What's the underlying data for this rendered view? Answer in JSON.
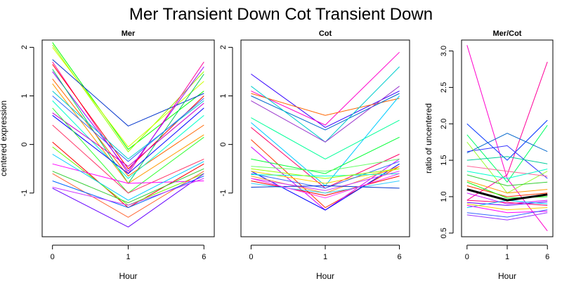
{
  "chart_data": {
    "title": "Mer Transient Down Cot Transient Down",
    "panels": [
      {
        "type": "line",
        "title": "Mer",
        "xlabel": "Hour",
        "ylabel": "centered expression",
        "x": [
          "0",
          "1",
          "6"
        ],
        "ylim": [
          -1.9,
          2.15
        ],
        "yticks": [
          -1,
          0,
          1,
          2
        ],
        "series": [
          {
            "color": "#00ff00",
            "values": [
              2.1,
              -0.1,
              1.1
            ]
          },
          {
            "color": "#99ff00",
            "values": [
              2.05,
              -0.15,
              1.5
            ]
          },
          {
            "color": "#ccff00",
            "values": [
              2.0,
              -0.05,
              1.3
            ]
          },
          {
            "color": "#0033cc",
            "values": [
              1.75,
              0.38,
              1.05
            ]
          },
          {
            "color": "#ff0099",
            "values": [
              1.7,
              -0.6,
              1.7
            ]
          },
          {
            "color": "#ff0000",
            "values": [
              1.65,
              -0.5,
              1.0
            ]
          },
          {
            "color": "#9900ff",
            "values": [
              1.5,
              -0.55,
              1.6
            ]
          },
          {
            "color": "#00cc66",
            "values": [
              1.55,
              -0.8,
              1.45
            ]
          },
          {
            "color": "#ff6600",
            "values": [
              1.35,
              -0.65,
              0.4
            ]
          },
          {
            "color": "#ff9900",
            "values": [
              1.25,
              -0.8,
              0.2
            ]
          },
          {
            "color": "#00cccc",
            "values": [
              1.1,
              -0.3,
              0.9
            ]
          },
          {
            "color": "#3366ff",
            "values": [
              1.0,
              -0.35,
              0.95
            ]
          },
          {
            "color": "#00ffcc",
            "values": [
              0.9,
              -0.7,
              0.6
            ]
          },
          {
            "color": "#cc00cc",
            "values": [
              0.65,
              -0.45,
              0.85
            ]
          },
          {
            "color": "#0000ff",
            "values": [
              0.6,
              -0.6,
              0.75
            ]
          },
          {
            "color": "#33ff33",
            "values": [
              0.75,
              -1.0,
              0.15
            ]
          },
          {
            "color": "#ff3366",
            "values": [
              0.4,
              -1.0,
              -0.3
            ]
          },
          {
            "color": "#ff0000",
            "values": [
              0.05,
              -1.3,
              -0.4
            ]
          },
          {
            "color": "#66ff00",
            "values": [
              -0.05,
              -1.25,
              -0.6
            ]
          },
          {
            "color": "#ff00ff",
            "values": [
              -0.4,
              -0.8,
              -0.75
            ]
          },
          {
            "color": "#00ccff",
            "values": [
              -0.2,
              -1.15,
              -0.35
            ]
          },
          {
            "color": "#33cc33",
            "values": [
              -0.55,
              -1.2,
              -0.5
            ]
          },
          {
            "color": "#ff6633",
            "values": [
              -0.6,
              -1.5,
              -0.55
            ]
          },
          {
            "color": "#0066ff",
            "values": [
              -0.75,
              -1.3,
              -0.65
            ]
          },
          {
            "color": "#6600ff",
            "values": [
              -0.9,
              -1.7,
              -0.6
            ]
          },
          {
            "color": "#cc33ff",
            "values": [
              -0.88,
              -1.25,
              -0.7
            ]
          }
        ]
      },
      {
        "type": "line",
        "title": "Cot",
        "xlabel": "Hour",
        "ylabel": "",
        "x": [
          "0",
          "1",
          "6"
        ],
        "ylim": [
          -1.9,
          2.15
        ],
        "yticks": [
          -1,
          0,
          1,
          2
        ],
        "series": [
          {
            "color": "#3300ff",
            "values": [
              1.45,
              0.35,
              1.1
            ]
          },
          {
            "color": "#ff00cc",
            "values": [
              1.1,
              0.4,
              1.9
            ]
          },
          {
            "color": "#ff6600",
            "values": [
              1.05,
              0.6,
              0.95
            ]
          },
          {
            "color": "#0066cc",
            "values": [
              1.0,
              0.3,
              1.05
            ]
          },
          {
            "color": "#00cccc",
            "values": [
              1.2,
              0.05,
              1.6
            ]
          },
          {
            "color": "#9933cc",
            "values": [
              0.9,
              0.05,
              1.2
            ]
          },
          {
            "color": "#00ff99",
            "values": [
              0.55,
              -0.3,
              0.5
            ]
          },
          {
            "color": "#00ccff",
            "values": [
              0.45,
              -0.85,
              1.0
            ]
          },
          {
            "color": "#ff0066",
            "values": [
              0.35,
              -0.9,
              -0.2
            ]
          },
          {
            "color": "#ff3300",
            "values": [
              0.1,
              -1.3,
              -0.45
            ]
          },
          {
            "color": "#cc00ff",
            "values": [
              -0.05,
              -1.35,
              -0.3
            ]
          },
          {
            "color": "#00ff33",
            "values": [
              -0.3,
              -0.6,
              0.15
            ]
          },
          {
            "color": "#0000ff",
            "values": [
              -0.55,
              -1.35,
              -0.4
            ]
          },
          {
            "color": "#66ff66",
            "values": [
              -0.45,
              -0.55,
              -0.3
            ]
          },
          {
            "color": "#ffcc00",
            "values": [
              -0.55,
              -0.8,
              -0.5
            ]
          },
          {
            "color": "#ff9933",
            "values": [
              -0.65,
              -1.0,
              -0.45
            ]
          },
          {
            "color": "#3366ff",
            "values": [
              -0.6,
              -0.9,
              -0.35
            ]
          },
          {
            "color": "#00ffcc",
            "values": [
              -0.62,
              -0.65,
              -0.6
            ]
          },
          {
            "color": "#cc33ff",
            "values": [
              -0.7,
              -0.95,
              -0.55
            ]
          },
          {
            "color": "#ff0000",
            "values": [
              -0.75,
              -1.05,
              -0.65
            ]
          },
          {
            "color": "#33ccff",
            "values": [
              -0.8,
              -1.0,
              -0.75
            ]
          },
          {
            "color": "#0033cc",
            "values": [
              -0.88,
              -0.85,
              -0.9
            ]
          },
          {
            "color": "#99ff00",
            "values": [
              -0.5,
              -0.7,
              -0.5
            ]
          },
          {
            "color": "#ff33ff",
            "values": [
              -0.7,
              -1.1,
              -0.6
            ]
          }
        ]
      },
      {
        "type": "line",
        "title": "Mer/Cot",
        "xlabel": "Hour",
        "ylabel": "ratio of uncentered",
        "x": [
          "0",
          "1",
          "6"
        ],
        "ylim": [
          0.45,
          3.15
        ],
        "yticks": [
          0.5,
          1.0,
          1.5,
          2.0,
          2.5,
          3.0
        ],
        "yticklabels": [
          "0.5",
          "1.0",
          "1.5",
          "2.0",
          "2.5",
          "3.0"
        ],
        "series": [
          {
            "color": "#ff00cc",
            "values": [
              3.08,
              1.25,
              0.53
            ]
          },
          {
            "color": "#ff0099",
            "values": [
              0.95,
              1.3,
              2.85
            ]
          },
          {
            "color": "#0033ff",
            "values": [
              2.0,
              1.5,
              2.05
            ]
          },
          {
            "color": "#00ff66",
            "values": [
              1.85,
              1.2,
              1.98
            ]
          },
          {
            "color": "#0066cc",
            "values": [
              1.6,
              1.87,
              1.62
            ]
          },
          {
            "color": "#3333ff",
            "values": [
              1.62,
              1.7,
              1.25
            ]
          },
          {
            "color": "#99ff33",
            "values": [
              1.75,
              1.05,
              1.35
            ]
          },
          {
            "color": "#00cc99",
            "values": [
              1.5,
              1.55,
              1.45
            ]
          },
          {
            "color": "#ff6699",
            "values": [
              1.42,
              1.35,
              1.28
            ]
          },
          {
            "color": "#00ffcc",
            "values": [
              1.35,
              1.25,
              1.38
            ]
          },
          {
            "color": "#33cc33",
            "values": [
              1.3,
              1.15,
              1.2
            ]
          },
          {
            "color": "#ff9900",
            "values": [
              1.22,
              1.05,
              1.1
            ]
          },
          {
            "color": "#ff3300",
            "values": [
              1.15,
              1.0,
              1.05
            ]
          },
          {
            "color": "#cc00ff",
            "values": [
              1.05,
              0.9,
              0.95
            ]
          },
          {
            "color": "#ff0066",
            "values": [
              0.95,
              0.92,
              0.88
            ]
          },
          {
            "color": "#6600ff",
            "values": [
              0.92,
              0.88,
              0.93
            ]
          },
          {
            "color": "#00ccff",
            "values": [
              0.85,
              0.95,
              0.9
            ]
          },
          {
            "color": "#ffcc00",
            "values": [
              0.9,
              0.82,
              0.85
            ]
          },
          {
            "color": "#ff00ff",
            "values": [
              0.88,
              0.78,
              0.8
            ]
          },
          {
            "color": "#3366ff",
            "values": [
              0.78,
              0.72,
              0.82
            ]
          },
          {
            "color": "#9933ff",
            "values": [
              0.75,
              0.68,
              0.78
            ]
          },
          {
            "color": "#00ff00",
            "values": [
              1.2,
              0.98,
              1.0
            ]
          },
          {
            "color": "#000000",
            "width": 3,
            "values": [
              1.1,
              0.95,
              1.03
            ]
          }
        ]
      }
    ]
  }
}
